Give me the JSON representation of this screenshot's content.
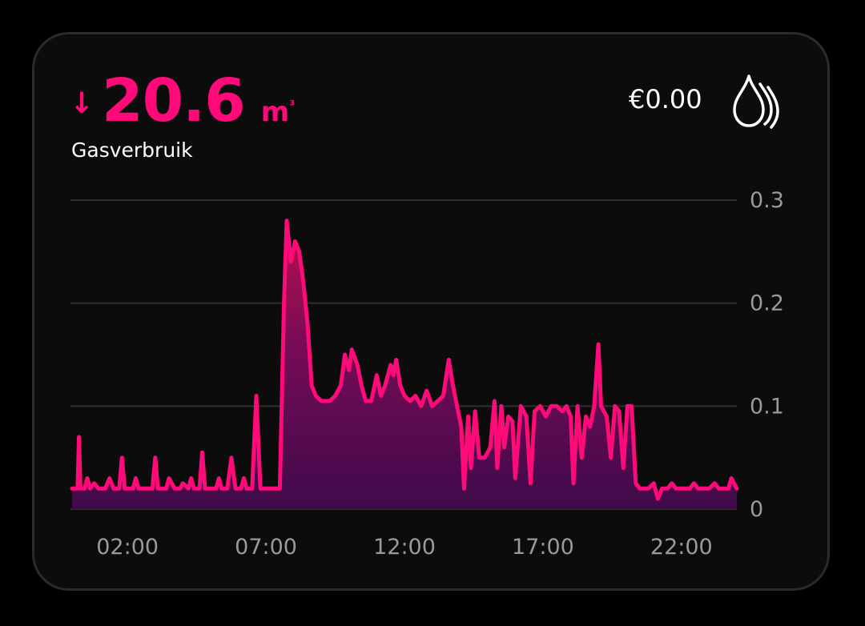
{
  "card": {
    "trend_arrow": "↓",
    "value": "20.6",
    "unit": "m",
    "unit_superscript": "³",
    "name": "Gasverbruik",
    "cost": "€0.00",
    "icon": "gas-flame-icon",
    "accent_color": "#ff0a78"
  },
  "chart_data": {
    "type": "area",
    "ylim": [
      0,
      0.3
    ],
    "y_ticks": [
      "0.3",
      "0.2",
      "0.1",
      "0"
    ],
    "x_ticks": [
      "02:00",
      "07:00",
      "12:00",
      "17:00",
      "22:00"
    ],
    "x_tick_hours": [
      2,
      7,
      12,
      17,
      22
    ],
    "xlim_hours": [
      0,
      24
    ],
    "grid": true,
    "series": [
      {
        "color": "#ff0a78",
        "points": [
          [
            0.0,
            0.02
          ],
          [
            0.2,
            0.02
          ],
          [
            0.25,
            0.07
          ],
          [
            0.3,
            0.02
          ],
          [
            0.45,
            0.02
          ],
          [
            0.55,
            0.03
          ],
          [
            0.65,
            0.02
          ],
          [
            0.8,
            0.025
          ],
          [
            0.95,
            0.02
          ],
          [
            1.2,
            0.02
          ],
          [
            1.35,
            0.03
          ],
          [
            1.5,
            0.02
          ],
          [
            1.7,
            0.02
          ],
          [
            1.8,
            0.05
          ],
          [
            1.9,
            0.02
          ],
          [
            2.2,
            0.02
          ],
          [
            2.3,
            0.03
          ],
          [
            2.4,
            0.02
          ],
          [
            2.9,
            0.02
          ],
          [
            3.0,
            0.05
          ],
          [
            3.1,
            0.02
          ],
          [
            3.4,
            0.02
          ],
          [
            3.5,
            0.03
          ],
          [
            3.7,
            0.02
          ],
          [
            3.9,
            0.02
          ],
          [
            4.0,
            0.025
          ],
          [
            4.2,
            0.02
          ],
          [
            4.3,
            0.03
          ],
          [
            4.4,
            0.02
          ],
          [
            4.6,
            0.02
          ],
          [
            4.7,
            0.055
          ],
          [
            4.8,
            0.02
          ],
          [
            5.2,
            0.02
          ],
          [
            5.3,
            0.03
          ],
          [
            5.4,
            0.02
          ],
          [
            5.6,
            0.02
          ],
          [
            5.75,
            0.05
          ],
          [
            5.9,
            0.02
          ],
          [
            6.1,
            0.02
          ],
          [
            6.2,
            0.03
          ],
          [
            6.3,
            0.02
          ],
          [
            6.5,
            0.02
          ],
          [
            6.65,
            0.11
          ],
          [
            6.8,
            0.02
          ],
          [
            7.5,
            0.02
          ],
          [
            7.65,
            0.2
          ],
          [
            7.75,
            0.28
          ],
          [
            7.9,
            0.24
          ],
          [
            8.05,
            0.26
          ],
          [
            8.2,
            0.25
          ],
          [
            8.35,
            0.22
          ],
          [
            8.5,
            0.18
          ],
          [
            8.65,
            0.12
          ],
          [
            8.8,
            0.11
          ],
          [
            9.0,
            0.105
          ],
          [
            9.3,
            0.105
          ],
          [
            9.5,
            0.11
          ],
          [
            9.7,
            0.12
          ],
          [
            9.85,
            0.15
          ],
          [
            10.0,
            0.135
          ],
          [
            10.1,
            0.155
          ],
          [
            10.3,
            0.14
          ],
          [
            10.45,
            0.12
          ],
          [
            10.6,
            0.105
          ],
          [
            10.8,
            0.105
          ],
          [
            11.0,
            0.13
          ],
          [
            11.15,
            0.11
          ],
          [
            11.3,
            0.12
          ],
          [
            11.5,
            0.14
          ],
          [
            11.6,
            0.13
          ],
          [
            11.7,
            0.145
          ],
          [
            11.85,
            0.12
          ],
          [
            12.0,
            0.11
          ],
          [
            12.2,
            0.105
          ],
          [
            12.4,
            0.11
          ],
          [
            12.6,
            0.1
          ],
          [
            12.8,
            0.115
          ],
          [
            13.0,
            0.1
          ],
          [
            13.2,
            0.105
          ],
          [
            13.4,
            0.11
          ],
          [
            13.6,
            0.145
          ],
          [
            13.75,
            0.12
          ],
          [
            13.9,
            0.1
          ],
          [
            14.05,
            0.08
          ],
          [
            14.15,
            0.02
          ],
          [
            14.3,
            0.09
          ],
          [
            14.4,
            0.04
          ],
          [
            14.55,
            0.095
          ],
          [
            14.7,
            0.05
          ],
          [
            14.9,
            0.05
          ],
          [
            15.1,
            0.06
          ],
          [
            15.25,
            0.105
          ],
          [
            15.35,
            0.04
          ],
          [
            15.5,
            0.1
          ],
          [
            15.6,
            0.06
          ],
          [
            15.75,
            0.09
          ],
          [
            15.9,
            0.085
          ],
          [
            16.0,
            0.03
          ],
          [
            16.2,
            0.1
          ],
          [
            16.4,
            0.09
          ],
          [
            16.55,
            0.025
          ],
          [
            16.7,
            0.095
          ],
          [
            16.9,
            0.1
          ],
          [
            17.1,
            0.09
          ],
          [
            17.3,
            0.1
          ],
          [
            17.5,
            0.1
          ],
          [
            17.7,
            0.095
          ],
          [
            17.85,
            0.1
          ],
          [
            18.0,
            0.09
          ],
          [
            18.1,
            0.025
          ],
          [
            18.25,
            0.1
          ],
          [
            18.4,
            0.05
          ],
          [
            18.55,
            0.09
          ],
          [
            18.7,
            0.08
          ],
          [
            18.85,
            0.1
          ],
          [
            19.0,
            0.16
          ],
          [
            19.1,
            0.1
          ],
          [
            19.3,
            0.09
          ],
          [
            19.45,
            0.05
          ],
          [
            19.6,
            0.1
          ],
          [
            19.75,
            0.095
          ],
          [
            19.9,
            0.04
          ],
          [
            20.05,
            0.1
          ],
          [
            20.2,
            0.1
          ],
          [
            20.35,
            0.025
          ],
          [
            20.5,
            0.02
          ],
          [
            20.8,
            0.02
          ],
          [
            21.0,
            0.025
          ],
          [
            21.15,
            0.01
          ],
          [
            21.3,
            0.02
          ],
          [
            21.5,
            0.02
          ],
          [
            21.65,
            0.025
          ],
          [
            21.8,
            0.02
          ],
          [
            22.0,
            0.02
          ],
          [
            22.3,
            0.02
          ],
          [
            22.45,
            0.025
          ],
          [
            22.6,
            0.02
          ],
          [
            23.0,
            0.02
          ],
          [
            23.2,
            0.025
          ],
          [
            23.35,
            0.02
          ],
          [
            23.7,
            0.02
          ],
          [
            23.8,
            0.03
          ],
          [
            24.0,
            0.02
          ]
        ]
      }
    ]
  }
}
